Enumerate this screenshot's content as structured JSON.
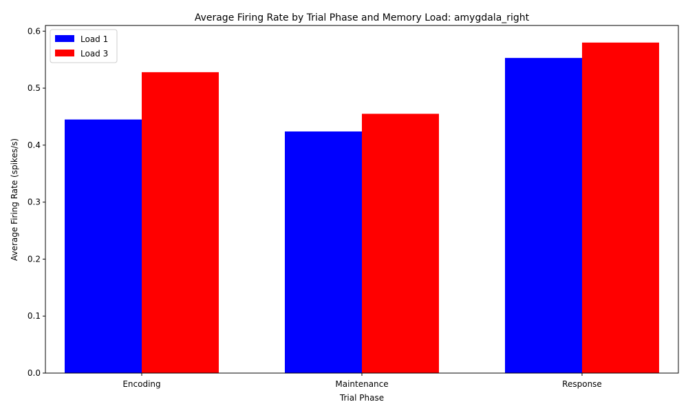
{
  "chart_data": {
    "type": "bar",
    "title": "Average Firing Rate by Trial Phase and Memory Load: amygdala_right",
    "xlabel": "Trial Phase",
    "ylabel": "Average Firing Rate (spikes/s)",
    "categories": [
      "Encoding",
      "Maintenance",
      "Response"
    ],
    "series": [
      {
        "name": "Load 1",
        "color": "#0000ff",
        "values": [
          0.445,
          0.424,
          0.553
        ]
      },
      {
        "name": "Load 3",
        "color": "#ff0000",
        "values": [
          0.528,
          0.455,
          0.58
        ]
      }
    ],
    "ylim": [
      0,
      0.61
    ],
    "yticks": [
      "0.0",
      "0.1",
      "0.2",
      "0.3",
      "0.4",
      "0.5",
      "0.6"
    ],
    "grid": false,
    "legend_position": "upper-left"
  }
}
